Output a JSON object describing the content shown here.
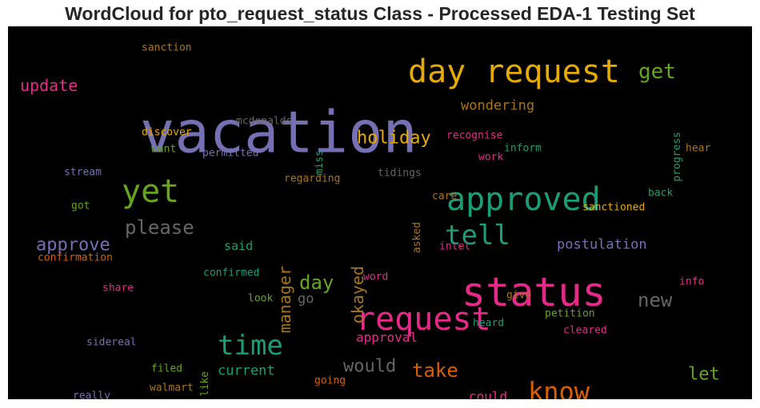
{
  "title": "WordCloud for pto_request_status Class - Processed EDA-1 Testing Set",
  "chart_data": {
    "type": "wordcloud",
    "background": "#000000",
    "palette": {
      "purple": "#7570b3",
      "orange": "#e6ab02",
      "green": "#66a61e",
      "teal": "#1b9e77",
      "pink": "#e7298a",
      "rust": "#d95f02",
      "gray": "#666666",
      "brown": "#a6761d"
    },
    "words": [
      {
        "text": "vacation",
        "color": "purple"
      },
      {
        "text": "day request",
        "color": "orange"
      },
      {
        "text": "status",
        "color": "pink"
      },
      {
        "text": "approved",
        "color": "teal"
      },
      {
        "text": "request",
        "color": "pink"
      },
      {
        "text": "yet",
        "color": "green"
      },
      {
        "text": "time",
        "color": "teal"
      },
      {
        "text": "know",
        "color": "rust"
      },
      {
        "text": "tell",
        "color": "teal"
      },
      {
        "text": "get",
        "color": "green"
      },
      {
        "text": "please",
        "color": "gray"
      },
      {
        "text": "manager",
        "color": "brown"
      },
      {
        "text": "okayed",
        "color": "brown"
      },
      {
        "text": "holiday",
        "color": "orange"
      },
      {
        "text": "day",
        "color": "green"
      },
      {
        "text": "new",
        "color": "gray"
      },
      {
        "text": "take",
        "color": "rust"
      },
      {
        "text": "approve",
        "color": "purple"
      },
      {
        "text": "would",
        "color": "gray"
      },
      {
        "text": "update",
        "color": "pink"
      },
      {
        "text": "let",
        "color": "green"
      },
      {
        "text": "wondering",
        "color": "brown"
      },
      {
        "text": "postulation",
        "color": "purple"
      },
      {
        "text": "current",
        "color": "teal"
      },
      {
        "text": "approval",
        "color": "pink"
      },
      {
        "text": "could",
        "color": "pink"
      },
      {
        "text": "said",
        "color": "teal"
      },
      {
        "text": "go",
        "color": "gray"
      },
      {
        "text": "sanction",
        "color": "brown"
      },
      {
        "text": "mcdonalds",
        "color": "gray"
      },
      {
        "text": "discover",
        "color": "orange"
      },
      {
        "text": "want",
        "color": "green"
      },
      {
        "text": "permitted",
        "color": "purple"
      },
      {
        "text": "miss",
        "color": "teal"
      },
      {
        "text": "recognise",
        "color": "pink"
      },
      {
        "text": "work",
        "color": "pink"
      },
      {
        "text": "inform",
        "color": "teal"
      },
      {
        "text": "progress",
        "color": "teal"
      },
      {
        "text": "hear",
        "color": "brown"
      },
      {
        "text": "stream",
        "color": "purple"
      },
      {
        "text": "regarding",
        "color": "brown"
      },
      {
        "text": "tidings",
        "color": "gray"
      },
      {
        "text": "care",
        "color": "brown"
      },
      {
        "text": "back",
        "color": "teal"
      },
      {
        "text": "got",
        "color": "green"
      },
      {
        "text": "asked",
        "color": "brown"
      },
      {
        "text": "sanctioned",
        "color": "orange"
      },
      {
        "text": "intel",
        "color": "pink"
      },
      {
        "text": "confirmation",
        "color": "rust"
      },
      {
        "text": "confirmed",
        "color": "teal"
      },
      {
        "text": "word",
        "color": "pink"
      },
      {
        "text": "info",
        "color": "pink"
      },
      {
        "text": "share",
        "color": "pink"
      },
      {
        "text": "look",
        "color": "green"
      },
      {
        "text": "give",
        "color": "brown"
      },
      {
        "text": "petition",
        "color": "green"
      },
      {
        "text": "heard",
        "color": "teal"
      },
      {
        "text": "cleared",
        "color": "pink"
      },
      {
        "text": "sidereal",
        "color": "purple"
      },
      {
        "text": "like",
        "color": "green"
      },
      {
        "text": "filed",
        "color": "green"
      },
      {
        "text": "going",
        "color": "rust"
      },
      {
        "text": "walmart",
        "color": "brown"
      },
      {
        "text": "really",
        "color": "purple"
      }
    ]
  }
}
